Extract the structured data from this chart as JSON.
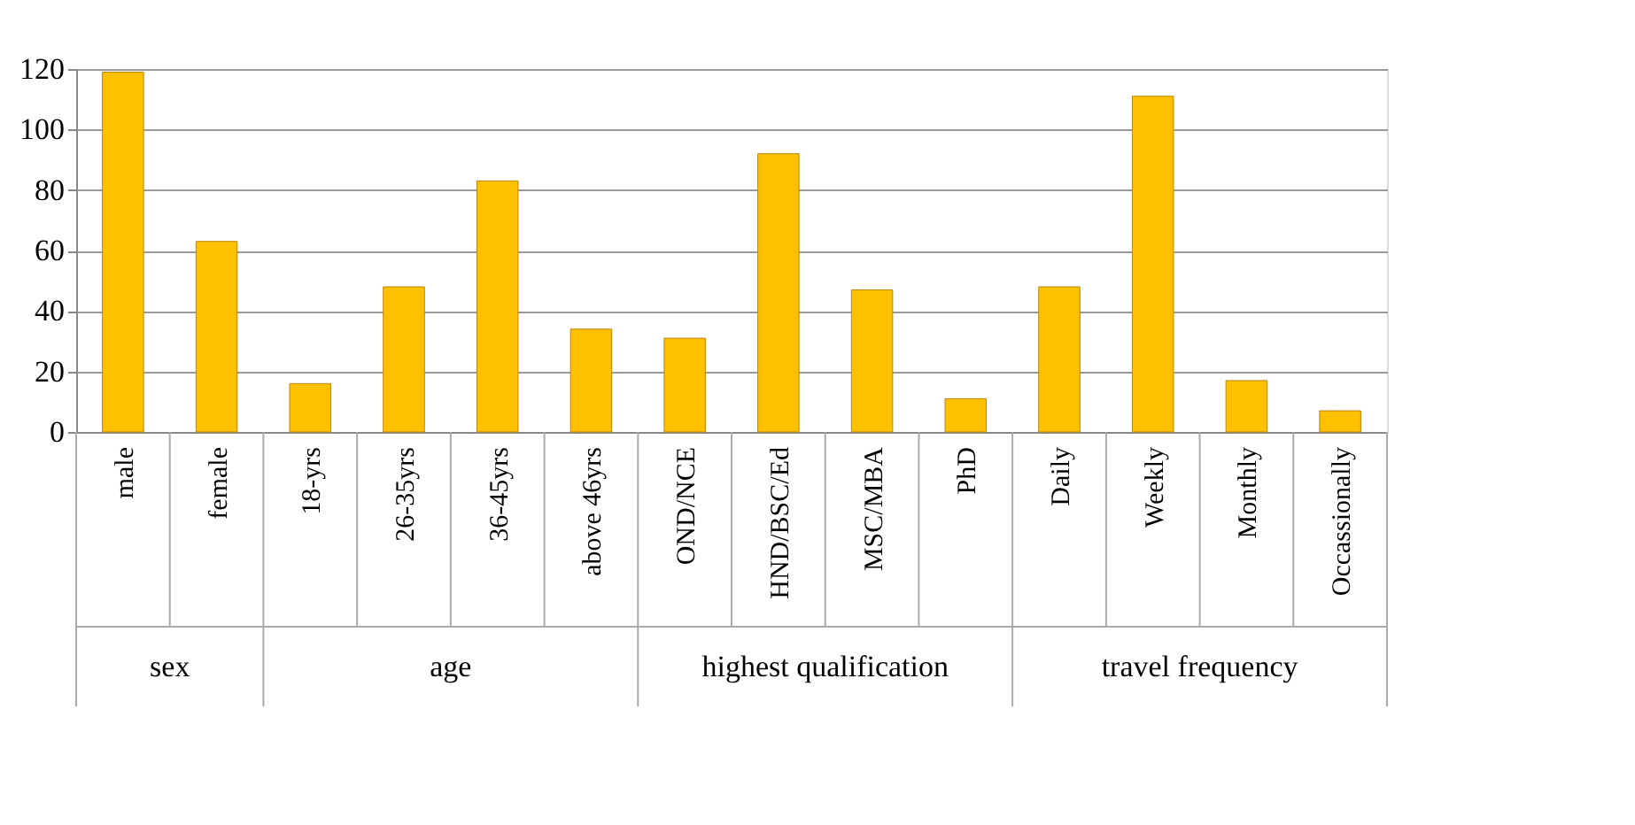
{
  "chart_data": {
    "type": "bar",
    "categories": [
      "male",
      "female",
      "18-yrs",
      "26-35yrs",
      "36-45yrs",
      "above 46yrs",
      "OND/NCE",
      "HND/BSC/Ed",
      "MSC/MBA",
      "PhD",
      "Daily",
      "Weekly",
      "Monthly",
      "Occassionally"
    ],
    "values": [
      119,
      63,
      16,
      48,
      83,
      34,
      31,
      92,
      47,
      11,
      48,
      111,
      17,
      7
    ],
    "color": "#ffc000",
    "ylim": [
      0,
      120
    ],
    "yticks": [
      0,
      20,
      40,
      60,
      80,
      100,
      120
    ],
    "grid": "y",
    "annotations": [
      "sex",
      "age",
      "highest qualification",
      "travel frequency"
    ]
  }
}
